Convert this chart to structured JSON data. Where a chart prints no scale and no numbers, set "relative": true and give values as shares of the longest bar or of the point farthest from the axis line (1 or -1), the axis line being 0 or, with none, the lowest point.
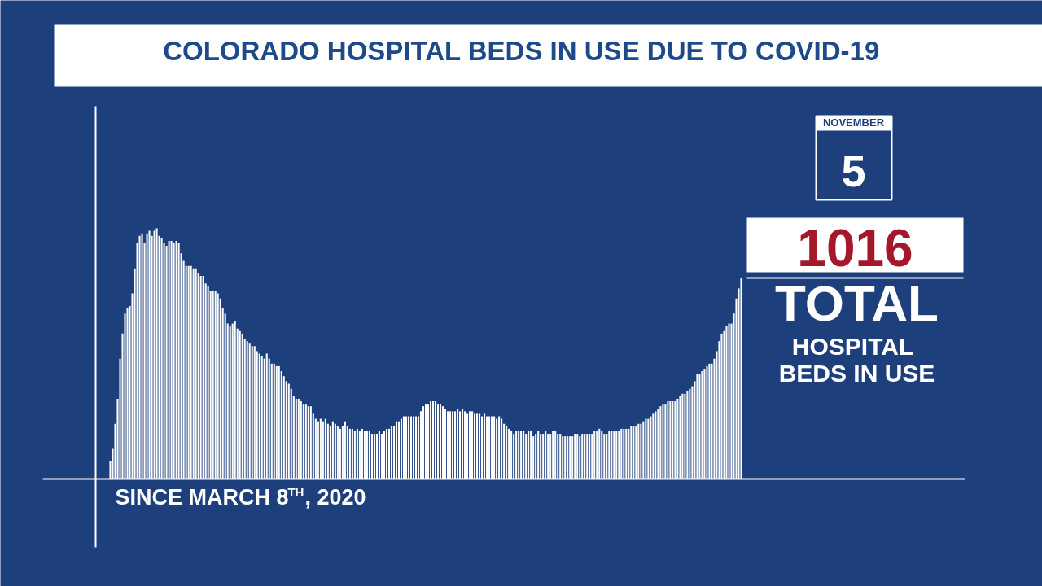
{
  "chart_data": {
    "type": "bar",
    "relative": true,
    "title": "COLORADO HOSPITAL BEDS IN USE DUE TO COVID-19",
    "color": "#ffffff",
    "annotations": [
      "NOVEMBER",
      "5",
      "1016",
      "TOTAL",
      "HOSPITAL",
      "BEDS IN USE",
      "SINCE MARCH 8$^{TH}$, 2020"
    ],
    "categories": [
      null,
      null,
      null,
      null,
      null,
      null,
      null,
      null,
      null,
      null,
      null,
      null,
      null,
      null,
      null,
      null,
      null,
      null,
      null,
      null,
      null,
      null,
      null,
      null,
      null,
      null,
      null,
      null,
      null,
      null,
      null,
      null,
      null,
      null,
      null,
      null,
      null,
      null,
      null,
      null,
      null,
      null,
      null,
      null,
      null,
      null,
      null,
      null,
      null,
      null,
      null,
      null,
      null,
      null,
      null,
      null,
      null,
      null,
      null,
      null,
      null,
      null,
      null,
      null,
      null,
      null,
      null,
      null,
      null,
      null,
      null,
      null,
      null,
      null,
      null,
      null,
      null,
      null,
      null,
      null,
      null,
      null,
      null,
      null,
      null,
      null,
      null,
      null,
      null,
      null,
      null,
      null,
      null,
      null,
      null,
      null,
      null,
      null,
      null,
      null,
      null,
      null,
      null,
      null,
      null,
      null,
      null,
      null,
      null,
      null,
      null,
      null,
      null,
      null,
      null,
      null,
      null,
      null,
      null,
      null,
      null,
      null,
      null,
      null,
      null,
      null,
      null,
      null,
      null,
      null,
      null,
      null,
      null,
      null,
      null,
      null,
      null,
      null,
      null,
      null,
      null,
      null,
      null,
      null,
      null,
      null,
      null,
      null,
      null,
      null,
      null,
      null,
      null,
      null,
      null,
      null,
      null,
      null,
      null,
      null,
      null,
      null,
      null,
      null,
      null,
      null,
      null,
      null,
      null,
      null,
      null,
      null,
      null,
      null,
      null,
      null,
      null,
      null,
      null,
      null,
      null,
      null,
      null,
      null,
      null,
      null,
      null,
      null,
      null,
      null,
      null,
      null,
      null,
      null,
      null,
      null,
      null,
      null,
      null,
      null,
      null,
      null,
      null,
      null,
      null,
      null,
      null,
      null,
      null,
      null,
      null,
      null,
      null,
      null,
      null,
      null,
      null,
      null,
      null,
      null,
      null,
      null,
      null,
      null,
      null,
      null,
      null,
      null,
      null,
      null,
      null,
      null,
      null,
      null,
      null,
      null,
      null,
      null,
      null,
      null,
      null,
      null,
      null,
      null,
      null,
      null,
      null,
      null,
      null,
      null,
      null,
      null,
      null,
      null,
      null,
      null,
      null,
      null,
      null
    ],
    "values": [
      0.07,
      0.12,
      0.22,
      0.32,
      0.48,
      0.58,
      0.66,
      0.68,
      0.69,
      0.74,
      0.84,
      0.94,
      0.97,
      0.98,
      0.94,
      0.98,
      0.99,
      0.97,
      0.99,
      1,
      0.97,
      0.96,
      0.94,
      0.93,
      0.95,
      0.95,
      0.94,
      0.95,
      0.94,
      0.9,
      0.87,
      0.85,
      0.85,
      0.85,
      0.84,
      0.84,
      0.82,
      0.81,
      0.81,
      0.78,
      0.77,
      0.75,
      0.75,
      0.75,
      0.74,
      0.72,
      0.68,
      0.66,
      0.62,
      0.61,
      0.62,
      0.63,
      0.6,
      0.59,
      0.58,
      0.56,
      0.55,
      0.54,
      0.53,
      0.53,
      0.51,
      0.5,
      0.49,
      0.48,
      0.5,
      0.48,
      0.46,
      0.46,
      0.45,
      0.45,
      0.43,
      0.41,
      0.39,
      0.38,
      0.36,
      0.33,
      0.32,
      0.32,
      0.31,
      0.3,
      0.3,
      0.29,
      0.29,
      0.26,
      0.24,
      0.23,
      0.24,
      0.23,
      0.24,
      0.22,
      0.21,
      0.23,
      0.22,
      0.21,
      0.2,
      0.21,
      0.23,
      0.21,
      0.2,
      0.2,
      0.19,
      0.2,
      0.19,
      0.2,
      0.19,
      0.19,
      0.19,
      0.18,
      0.18,
      0.18,
      0.19,
      0.18,
      0.19,
      0.2,
      0.2,
      0.21,
      0.21,
      0.23,
      0.23,
      0.24,
      0.25,
      0.25,
      0.25,
      0.25,
      0.25,
      0.25,
      0.25,
      0.27,
      0.29,
      0.3,
      0.3,
      0.31,
      0.31,
      0.31,
      0.3,
      0.3,
      0.29,
      0.28,
      0.27,
      0.27,
      0.27,
      0.27,
      0.28,
      0.27,
      0.28,
      0.27,
      0.26,
      0.27,
      0.27,
      0.26,
      0.26,
      0.26,
      0.25,
      0.26,
      0.25,
      0.25,
      0.25,
      0.25,
      0.24,
      0.25,
      0.24,
      0.22,
      0.21,
      0.2,
      0.19,
      0.18,
      0.19,
      0.19,
      0.19,
      0.19,
      0.18,
      0.19,
      0.19,
      0.17,
      0.18,
      0.19,
      0.18,
      0.18,
      0.19,
      0.18,
      0.18,
      0.19,
      0.19,
      0.18,
      0.18,
      0.17,
      0.17,
      0.17,
      0.17,
      0.17,
      0.18,
      0.18,
      0.17,
      0.18,
      0.18,
      0.18,
      0.18,
      0.18,
      0.19,
      0.19,
      0.2,
      0.19,
      0.18,
      0.18,
      0.19,
      0.19,
      0.19,
      0.19,
      0.19,
      0.2,
      0.2,
      0.2,
      0.2,
      0.21,
      0.21,
      0.21,
      0.22,
      0.22,
      0.23,
      0.24,
      0.24,
      0.25,
      0.26,
      0.27,
      0.28,
      0.29,
      0.3,
      0.3,
      0.31,
      0.31,
      0.31,
      0.31,
      0.32,
      0.33,
      0.34,
      0.34,
      0.35,
      0.36,
      0.37,
      0.39,
      0.42,
      0.42,
      0.43,
      0.44,
      0.45,
      0.46,
      0.46,
      0.48,
      0.51,
      0.55,
      0.58,
      0.59,
      0.61,
      0.62,
      0.62,
      0.66,
      0.72,
      0.76,
      0.8
    ]
  }
}
